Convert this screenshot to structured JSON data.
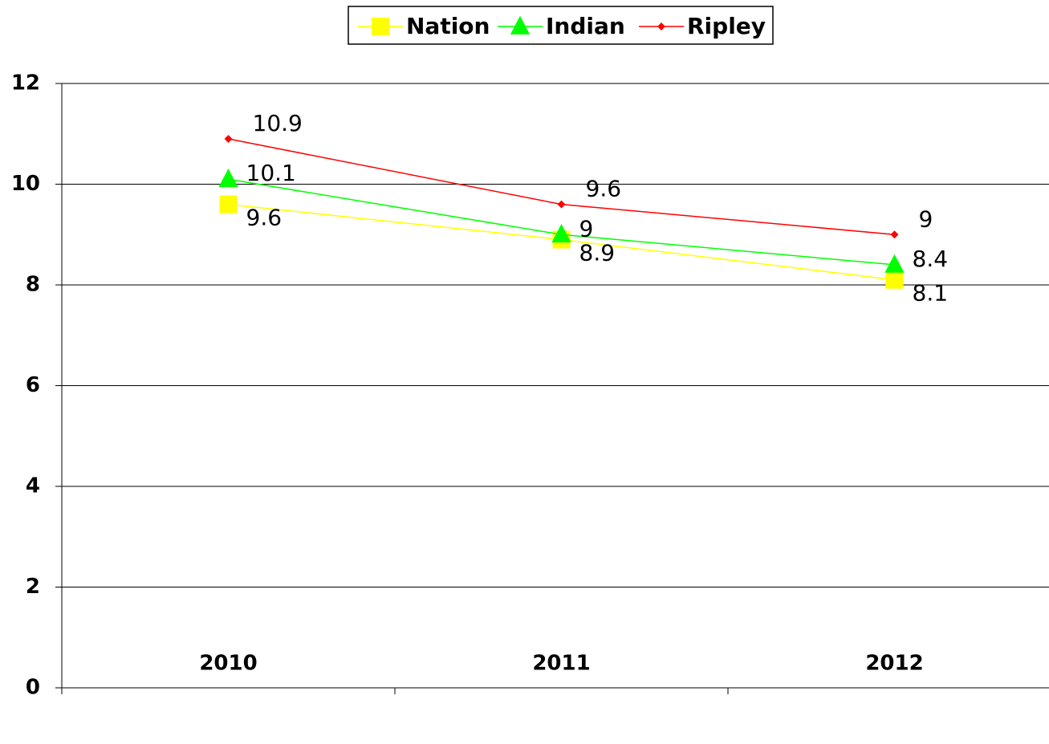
{
  "chart_data": {
    "type": "line",
    "categories": [
      "2010",
      "2011",
      "2012"
    ],
    "series": [
      {
        "name": "Nation",
        "color": "#ffff00",
        "marker": "square",
        "values": [
          9.6,
          8.9,
          8.1
        ]
      },
      {
        "name": "Indian",
        "color": "#00ff00",
        "marker": "triangle",
        "values": [
          10.1,
          9,
          8.4
        ]
      },
      {
        "name": "Ripley",
        "color": "#ff0000",
        "marker": "diamond",
        "values": [
          10.9,
          9.6,
          9
        ]
      }
    ],
    "ylim": [
      0,
      12
    ],
    "yticks": [
      0,
      2,
      4,
      6,
      8,
      10,
      12
    ],
    "grid": true,
    "legend": "top"
  }
}
